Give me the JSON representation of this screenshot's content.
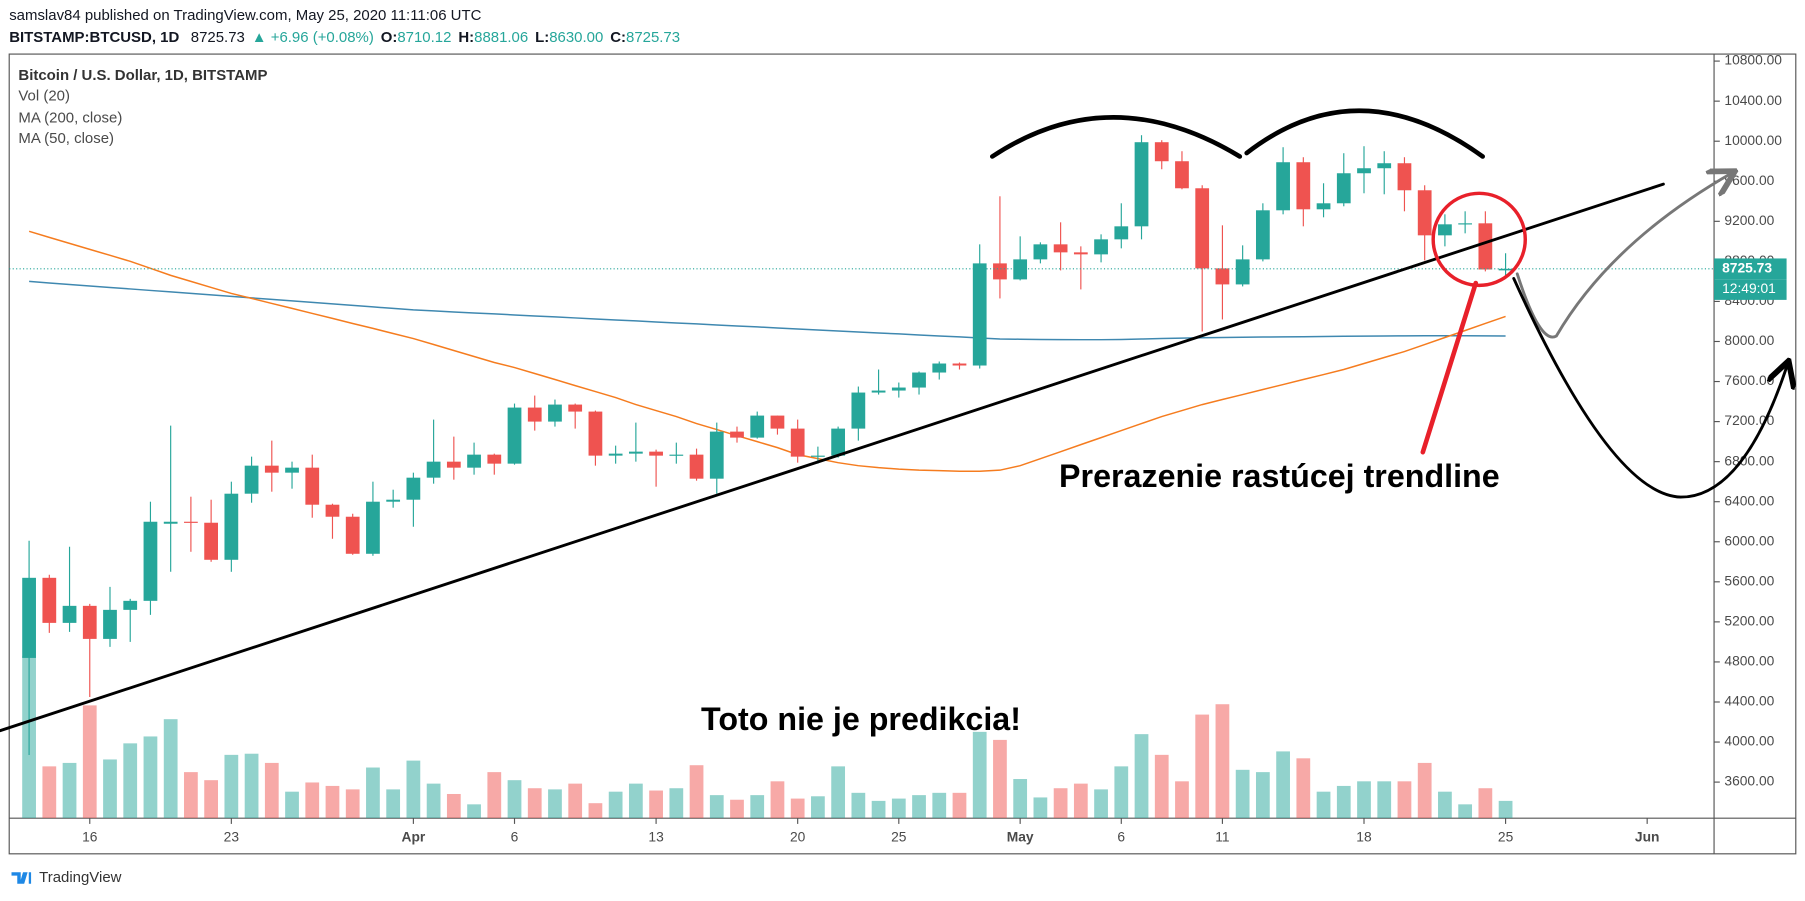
{
  "header": {
    "published": "samslav84 published on TradingView.com, May 25, 2020 11:11:06 UTC",
    "symbol": "BITSTAMP:BTCUSD, 1D",
    "price": "8725.73",
    "change": "▲ +6.96 (+0.08%)",
    "ohlc": [
      {
        "label": "O:",
        "value": "8710.12"
      },
      {
        "label": "H:",
        "value": "8881.06"
      },
      {
        "label": "L:",
        "value": "8630.00"
      },
      {
        "label": "C:",
        "value": "8725.73"
      }
    ]
  },
  "footer": {
    "brand": "TradingView"
  },
  "chart_data": {
    "type": "candlestick",
    "title": "Bitcoin / U.S. Dollar, 1D, BITSTAMP",
    "volume_name": "Vol (20)",
    "annotations": [
      "Prerazenie rastúcej trendline",
      "Toto nie je predikcia!"
    ],
    "countdown": "12:49:01",
    "up_color": "#26a69a",
    "down_color": "#ef5350",
    "x": [
      "Mar 13",
      "Mar 14",
      "Mar 15",
      "Mar 16",
      "Mar 17",
      "Mar 18",
      "Mar 19",
      "Mar 20",
      "Mar 21",
      "Mar 22",
      "Mar 23",
      "Mar 24",
      "Mar 25",
      "Mar 26",
      "Mar 27",
      "Mar 28",
      "Mar 29",
      "Mar 30",
      "Mar 31",
      "Apr 1",
      "Apr 2",
      "Apr 3",
      "Apr 4",
      "Apr 5",
      "Apr 6",
      "Apr 7",
      "Apr 8",
      "Apr 9",
      "Apr 10",
      "Apr 11",
      "Apr 12",
      "Apr 13",
      "Apr 14",
      "Apr 15",
      "Apr 16",
      "Apr 17",
      "Apr 18",
      "Apr 19",
      "Apr 20",
      "Apr 21",
      "Apr 22",
      "Apr 23",
      "Apr 24",
      "Apr 25",
      "Apr 26",
      "Apr 27",
      "Apr 28",
      "Apr 29",
      "Apr 30",
      "May 1",
      "May 2",
      "May 3",
      "May 4",
      "May 5",
      "May 6",
      "May 7",
      "May 8",
      "May 9",
      "May 10",
      "May 11",
      "May 12",
      "May 13",
      "May 14",
      "May 15",
      "May 16",
      "May 17",
      "May 18",
      "May 19",
      "May 20",
      "May 21",
      "May 22",
      "May 23",
      "May 24",
      "May 25"
    ],
    "open": [
      4840,
      5640,
      5190,
      5360,
      5030,
      5320,
      5410,
      6180,
      6200,
      6190,
      5820,
      6480,
      6760,
      6690,
      6740,
      6370,
      6250,
      5880,
      6400,
      6420,
      6640,
      6800,
      6740,
      6870,
      6780,
      7340,
      7200,
      7370,
      7300,
      6860,
      6880,
      6900,
      6860,
      6870,
      6630,
      7100,
      7040,
      7260,
      7130,
      6850,
      6860,
      7130,
      7490,
      7510,
      7540,
      7690,
      7780,
      7760,
      8780,
      8620,
      8820,
      8970,
      8890,
      8870,
      9020,
      9150,
      9990,
      9800,
      9530,
      8730,
      8570,
      8820,
      9310,
      9790,
      9320,
      9380,
      9680,
      9730,
      9780,
      9510,
      9060,
      9170,
      9180,
      8710.12
    ],
    "high": [
      6010,
      5670,
      5950,
      5380,
      5550,
      5430,
      6400,
      7160,
      6450,
      6420,
      6600,
      6850,
      7010,
      6800,
      6870,
      6380,
      6280,
      6600,
      6520,
      6690,
      7220,
      7050,
      6990,
      6880,
      7380,
      7460,
      7420,
      7380,
      7310,
      6960,
      7190,
      6920,
      6990,
      6930,
      7190,
      7150,
      7300,
      7260,
      7220,
      6950,
      7150,
      7550,
      7720,
      7590,
      7700,
      7800,
      7790,
      8970,
      9450,
      9050,
      8990,
      9190,
      8950,
      9070,
      9380,
      10060,
      10010,
      9900,
      9560,
      9160,
      8960,
      9380,
      9940,
      9840,
      9580,
      9880,
      9950,
      9900,
      9840,
      9560,
      9270,
      9300,
      9300,
      8881.06
    ],
    "low": [
      3870,
      5090,
      5100,
      4450,
      4950,
      5000,
      5270,
      5700,
      5900,
      5800,
      5700,
      6390,
      6500,
      6530,
      6240,
      6030,
      5870,
      5860,
      6340,
      6150,
      6580,
      6620,
      6670,
      6670,
      6770,
      7110,
      7150,
      7130,
      6760,
      6780,
      6800,
      6550,
      6780,
      6610,
      6480,
      6990,
      7030,
      7070,
      6790,
      6780,
      6840,
      7010,
      7470,
      7440,
      7470,
      7620,
      7720,
      7730,
      8430,
      8610,
      8780,
      8710,
      8520,
      8790,
      8930,
      9020,
      9720,
      9520,
      8100,
      8220,
      8550,
      8800,
      9270,
      9150,
      9240,
      9350,
      9480,
      9470,
      9300,
      8810,
      8950,
      9080,
      8700,
      8630
    ],
    "close": [
      5640,
      5190,
      5360,
      5030,
      5320,
      5410,
      6200,
      6200,
      6190,
      5820,
      6480,
      6760,
      6690,
      6740,
      6370,
      6250,
      5880,
      6400,
      6420,
      6640,
      6800,
      6740,
      6870,
      6780,
      7340,
      7200,
      7370,
      7300,
      6860,
      6880,
      6900,
      6860,
      6870,
      6630,
      7100,
      7040,
      7260,
      7130,
      6850,
      6860,
      7130,
      7490,
      7510,
      7540,
      7690,
      7780,
      7760,
      8780,
      8620,
      8820,
      8970,
      8890,
      8870,
      9020,
      9150,
      9990,
      9800,
      9530,
      8730,
      8570,
      8820,
      9310,
      9790,
      9320,
      9380,
      9680,
      9730,
      9780,
      9510,
      9060,
      9170,
      9180,
      8718.77,
      8725.73
    ],
    "volume": [
      141,
      45,
      48,
      98,
      51,
      65,
      71,
      86,
      40,
      33,
      55,
      56,
      48,
      23,
      31,
      28,
      25,
      44,
      25,
      50,
      30,
      21,
      12,
      40,
      33,
      26,
      25,
      30,
      13,
      23,
      30,
      24,
      26,
      46,
      20,
      16,
      20,
      32,
      17,
      19,
      45,
      22,
      15,
      17,
      20,
      22,
      22,
      75,
      68,
      34,
      18,
      26,
      30,
      25,
      45,
      73,
      55,
      32,
      90,
      99,
      42,
      40,
      58,
      52,
      23,
      28,
      32,
      32,
      32,
      48,
      23,
      12,
      26,
      15
    ],
    "volume_lim": [
      0,
      200
    ],
    "series": [
      {
        "name": "MA (200, close)",
        "color": "#3f88b0",
        "values": [
          8600,
          8585,
          8570,
          8555,
          8540,
          8525,
          8510,
          8495,
          8480,
          8465,
          8450,
          8435,
          8420,
          8405,
          8390,
          8375,
          8360,
          8345,
          8330,
          8315,
          8305,
          8295,
          8285,
          8275,
          8265,
          8255,
          8245,
          8235,
          8225,
          8215,
          8205,
          8195,
          8185,
          8175,
          8165,
          8155,
          8145,
          8135,
          8125,
          8115,
          8105,
          8095,
          8085,
          8075,
          8065,
          8055,
          8045,
          8035,
          8025,
          8022,
          8020,
          8019,
          8018,
          8018,
          8020,
          8025,
          8030,
          8034,
          8038,
          8040,
          8042,
          8044,
          8046,
          8048,
          8050,
          8052,
          8054,
          8055,
          8056,
          8057,
          8057,
          8057,
          8056,
          8055
        ]
      },
      {
        "name": "MA (50, close)",
        "color": "#f57c1f",
        "values": [
          9100,
          9040,
          8980,
          8920,
          8860,
          8800,
          8730,
          8660,
          8600,
          8540,
          8480,
          8430,
          8380,
          8330,
          8280,
          8230,
          8180,
          8130,
          8080,
          8030,
          7970,
          7910,
          7850,
          7790,
          7740,
          7680,
          7620,
          7560,
          7500,
          7440,
          7370,
          7310,
          7250,
          7180,
          7120,
          7060,
          7000,
          6940,
          6870,
          6830,
          6790,
          6760,
          6740,
          6725,
          6715,
          6710,
          6705,
          6705,
          6715,
          6760,
          6830,
          6900,
          6970,
          7040,
          7110,
          7180,
          7250,
          7310,
          7370,
          7420,
          7470,
          7520,
          7570,
          7620,
          7670,
          7720,
          7780,
          7840,
          7900,
          7970,
          8040,
          8110,
          8180,
          8250
        ]
      }
    ],
    "xlim": [
      "Mar 12",
      "Jun 4"
    ],
    "xticks": [
      {
        "value": "Mar 16",
        "label": "16"
      },
      {
        "value": "Mar 23",
        "label": "23"
      },
      {
        "value": "Apr 1",
        "label": "Apr"
      },
      {
        "value": "Apr 6",
        "label": "6"
      },
      {
        "value": "Apr 13",
        "label": "13"
      },
      {
        "value": "Apr 20",
        "label": "20"
      },
      {
        "value": "Apr 25",
        "label": "25"
      },
      {
        "value": "May 1",
        "label": "May"
      },
      {
        "value": "May 6",
        "label": "6"
      },
      {
        "value": "May 11",
        "label": "11"
      },
      {
        "value": "May 18",
        "label": "18"
      },
      {
        "value": "May 25",
        "label": "25"
      },
      {
        "value": "Jun 1",
        "label": "Jun"
      }
    ],
    "ylim": [
      3240,
      10870
    ],
    "yticks": [
      {
        "value": 3600,
        "label": "3600.00"
      },
      {
        "value": 4000,
        "label": "4000.00"
      },
      {
        "value": 4400,
        "label": "4400.00"
      },
      {
        "value": 4800,
        "label": "4800.00"
      },
      {
        "value": 5200,
        "label": "5200.00"
      },
      {
        "value": 5600,
        "label": "5600.00"
      },
      {
        "value": 6000,
        "label": "6000.00"
      },
      {
        "value": 6400,
        "label": "6400.00"
      },
      {
        "value": 6800,
        "label": "6800.00"
      },
      {
        "value": 7200,
        "label": "7200.00"
      },
      {
        "value": 7600,
        "label": "7600.00"
      },
      {
        "value": 8000,
        "label": "8000.00"
      },
      {
        "value": 8400,
        "label": "8400.00"
      },
      {
        "value": 8800,
        "label": "8800.00"
      },
      {
        "value": 9200,
        "label": "9200.00"
      },
      {
        "value": 9600,
        "label": "9600.00"
      },
      {
        "value": 10000,
        "label": "10000.00"
      },
      {
        "value": 10400,
        "label": "10400.00"
      },
      {
        "value": 10800,
        "label": "10800.00"
      }
    ]
  }
}
